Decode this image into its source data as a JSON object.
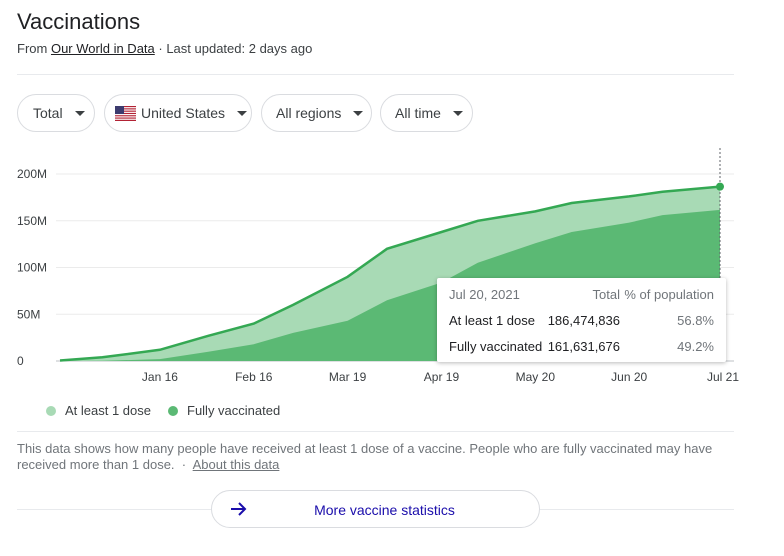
{
  "header": {
    "title": "Vaccinations",
    "source_prefix": "From",
    "source_link": "Our World in Data",
    "updated": "· Last updated: 2 days ago"
  },
  "filters": {
    "metric": "Total",
    "country": "United States",
    "region": "All regions",
    "range": "All time"
  },
  "tooltip": {
    "date": "Jul 20, 2021",
    "col_total": "Total",
    "col_pct": "% of population",
    "rows": [
      {
        "label": "At least 1 dose",
        "total": "186,474,836",
        "pct": "56.8%"
      },
      {
        "label": "Fully vaccinated",
        "total": "161,631,676",
        "pct": "49.2%"
      }
    ]
  },
  "legend": {
    "items": [
      {
        "label": "At least 1 dose",
        "color": "#a8dab5"
      },
      {
        "label": "Fully vaccinated",
        "color": "#5bb974"
      }
    ]
  },
  "description": {
    "text": "This data shows how many people have received at least 1 dose of a vaccine. People who are fully vaccinated may have received more than 1 dose.",
    "separator": "·",
    "link": "About this data"
  },
  "more_button": {
    "label": "More vaccine statistics",
    "icon": "arrow-right-icon"
  },
  "colors": {
    "dose1": "#a8dab5",
    "full": "#5bb974",
    "line": "#34a853",
    "link": "#1a0dab"
  },
  "chart_data": {
    "type": "area",
    "x": [
      "Dec 14",
      "Dec 28",
      "Jan 16",
      "Feb 1",
      "Feb 16",
      "Mar 1",
      "Mar 19",
      "Apr 1",
      "Apr 19",
      "May 1",
      "May 20",
      "Jun 1",
      "Jun 20",
      "Jul 1",
      "Jul 20"
    ],
    "x_days": [
      0,
      14,
      33,
      49,
      64,
      77,
      95,
      108,
      126,
      138,
      157,
      169,
      188,
      199,
      218
    ],
    "xticks": [
      {
        "label": "Jan 16",
        "day": 33
      },
      {
        "label": "Feb 16",
        "day": 64
      },
      {
        "label": "Mar 19",
        "day": 95
      },
      {
        "label": "Apr 19",
        "day": 126
      },
      {
        "label": "May 20",
        "day": 157
      },
      {
        "label": "Jun 20",
        "day": 188
      },
      {
        "label": "Jul 21",
        "day": 219
      }
    ],
    "yticks": [
      "0",
      "50M",
      "100M",
      "150M",
      "200M"
    ],
    "ytick_values": [
      0,
      50,
      100,
      150,
      200
    ],
    "ylim": [
      0,
      200
    ],
    "unit": "millions",
    "grid": true,
    "legend_position": "bottom-left",
    "series": [
      {
        "name": "At least 1 dose",
        "values": [
          0.5,
          4,
          12,
          27,
          40,
          60,
          90,
          120,
          138,
          150,
          160,
          169,
          176,
          181,
          186.5
        ]
      },
      {
        "name": "Fully vaccinated",
        "values": [
          0,
          0.2,
          2,
          10,
          18,
          30,
          43,
          65,
          84,
          105,
          126,
          138,
          148,
          156,
          161.6
        ]
      }
    ]
  }
}
